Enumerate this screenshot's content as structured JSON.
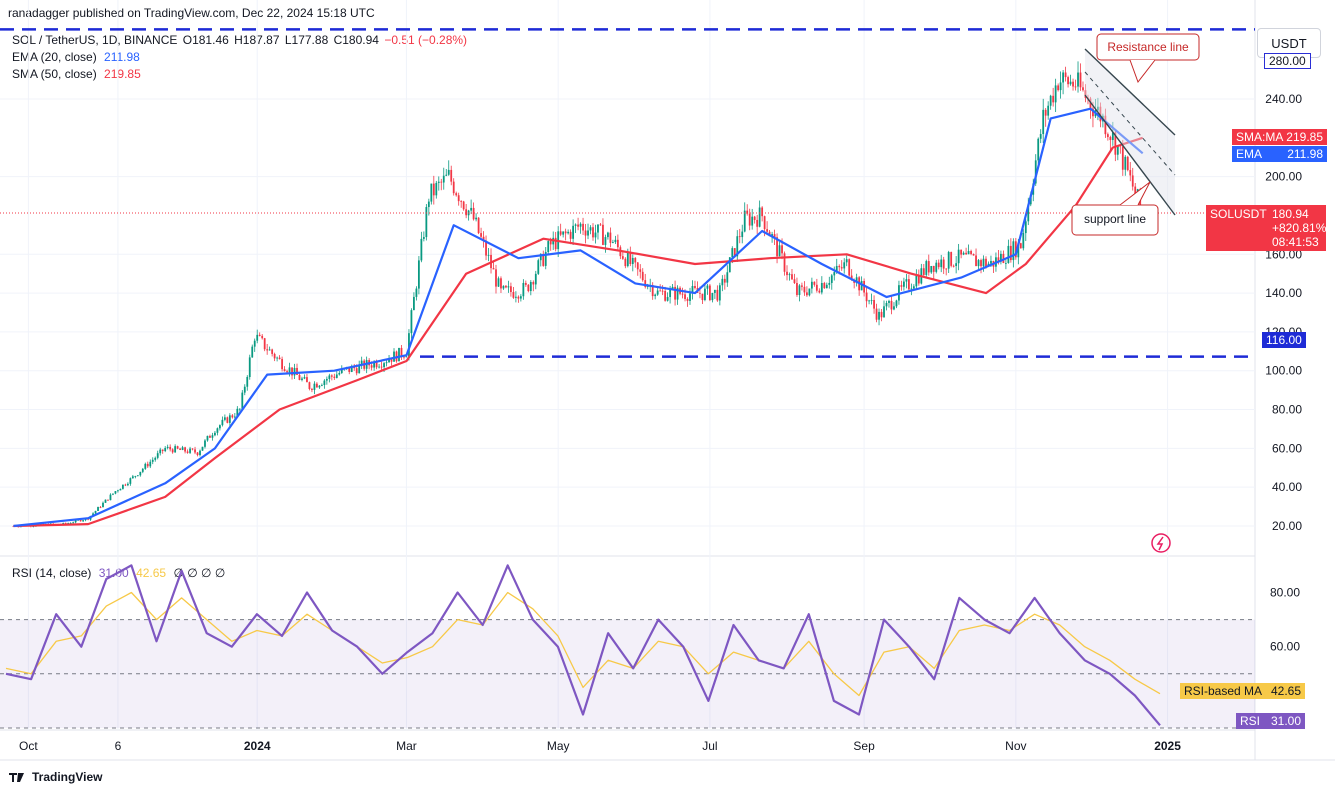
{
  "header": {
    "publisher": "ranadagger published on TradingView.com, Dec 22, 2024 15:18 UTC"
  },
  "legend": {
    "symbol": "SOL / TetherUS, 1D, BINANCE",
    "open": "O181.46",
    "high": "H187.87",
    "low": "L177.88",
    "close": "C180.94",
    "change": "−0.51 (−0.28%)",
    "ema_label": "EMA (20, close)",
    "ema_value": "211.98",
    "sma_label": "SMA (50, close)",
    "sma_value": "219.85",
    "rsi_label": "RSI (14, close)",
    "rsi_value": "31.00",
    "rsi_ma_value": "42.65",
    "rsi_placeholders": "∅ ∅ ∅ ∅"
  },
  "currency_button": "USDT",
  "tags": {
    "level_280": "280.00",
    "sma_tag": "SMA:MA",
    "sma_value": "219.85",
    "ema_tag": "EMA",
    "ema_value": "211.98",
    "sol_tag": "SOLUSDT",
    "sol_price": "180.94",
    "sol_change": "+820.81%",
    "sol_time": "08:41:53",
    "level_116": "116.00",
    "rsi_ma_tag": "RSI-based MA",
    "rsi_ma_value": "42.65",
    "rsi_tag": "RSI",
    "rsi_value": "31.00"
  },
  "annotations": {
    "resistance": "Resistance line",
    "support": "support line"
  },
  "footer": "TradingView",
  "chart_data": [
    {
      "type": "candlestick",
      "title": "SOL / TetherUS, 1D, BINANCE",
      "x_ticks": [
        "Oct",
        "6",
        "2024",
        "Mar",
        "May",
        "Jul",
        "Sep",
        "Nov",
        "2025"
      ],
      "y_ticks": [
        20,
        40,
        60,
        80,
        100,
        120,
        140,
        160,
        200,
        240
      ],
      "ylim": [
        10,
        290
      ],
      "grid": true,
      "horizontal_levels": [
        280,
        116
      ],
      "last_price": 180.94,
      "series": [
        {
          "name": "SOLUSDT",
          "kind": "close",
          "x": [
            "2023-09-25",
            "2023-10-15",
            "2023-10-25",
            "2023-11-05",
            "2023-11-12",
            "2023-11-25",
            "2023-12-08",
            "2023-12-15",
            "2023-12-25",
            "2023-12-31",
            "2024-01-10",
            "2024-01-22",
            "2024-02-05",
            "2024-02-20",
            "2024-03-01",
            "2024-03-10",
            "2024-03-18",
            "2024-03-28",
            "2024-04-08",
            "2024-04-18",
            "2024-04-28",
            "2024-05-10",
            "2024-05-22",
            "2024-06-01",
            "2024-06-10",
            "2024-06-25",
            "2024-07-05",
            "2024-07-15",
            "2024-07-22",
            "2024-08-05",
            "2024-08-15",
            "2024-08-25",
            "2024-09-07",
            "2024-09-15",
            "2024-09-28",
            "2024-10-10",
            "2024-10-22",
            "2024-11-03",
            "2024-11-12",
            "2024-11-18",
            "2024-11-25",
            "2024-12-06",
            "2024-12-12",
            "2024-12-18",
            "2024-12-22"
          ],
          "values": [
            20,
            21,
            24,
            38,
            45,
            60,
            58,
            70,
            80,
            118,
            105,
            92,
            100,
            105,
            110,
            190,
            200,
            178,
            140,
            142,
            165,
            175,
            168,
            152,
            140,
            140,
            140,
            178,
            180,
            140,
            145,
            155,
            128,
            140,
            155,
            158,
            155,
            165,
            230,
            250,
            248,
            230,
            215,
            195,
            181
          ]
        },
        {
          "name": "EMA (20, close)",
          "kind": "line",
          "x": [
            "2023-09-25",
            "2023-10-25",
            "2023-11-25",
            "2023-12-15",
            "2024-01-05",
            "2024-02-01",
            "2024-03-01",
            "2024-03-20",
            "2024-04-15",
            "2024-05-10",
            "2024-06-01",
            "2024-06-25",
            "2024-07-22",
            "2024-08-15",
            "2024-09-10",
            "2024-10-10",
            "2024-11-01",
            "2024-11-15",
            "2024-12-01",
            "2024-12-22"
          ],
          "values": [
            20,
            24,
            42,
            60,
            98,
            100,
            108,
            175,
            158,
            162,
            145,
            140,
            172,
            155,
            138,
            148,
            160,
            230,
            235,
            212
          ]
        },
        {
          "name": "SMA (50, close)",
          "kind": "line",
          "x": [
            "2023-09-25",
            "2023-10-25",
            "2023-11-25",
            "2023-12-15",
            "2024-01-10",
            "2024-02-10",
            "2024-03-01",
            "2024-03-25",
            "2024-04-25",
            "2024-05-25",
            "2024-06-25",
            "2024-07-25",
            "2024-08-25",
            "2024-09-20",
            "2024-10-20",
            "2024-11-05",
            "2024-11-25",
            "2024-12-10",
            "2024-12-22"
          ],
          "values": [
            20,
            21,
            35,
            55,
            80,
            95,
            105,
            150,
            168,
            162,
            155,
            158,
            160,
            150,
            140,
            155,
            185,
            215,
            220
          ]
        }
      ]
    },
    {
      "type": "line",
      "title": "RSI (14, close)",
      "y_ticks": [
        60,
        80
      ],
      "ylim": [
        30,
        92
      ],
      "bands": [
        30,
        70
      ],
      "series": [
        {
          "name": "RSI",
          "values": [
            50,
            48,
            72,
            60,
            85,
            90,
            62,
            88,
            65,
            60,
            72,
            64,
            80,
            66,
            60,
            50,
            58,
            65,
            80,
            68,
            90,
            70,
            60,
            35,
            65,
            52,
            70,
            60,
            40,
            68,
            55,
            52,
            72,
            40,
            35,
            70,
            60,
            48,
            78,
            70,
            65,
            78,
            65,
            55,
            50,
            42,
            31
          ]
        },
        {
          "name": "RSI-based MA",
          "values": [
            52,
            50,
            62,
            64,
            75,
            80,
            70,
            78,
            70,
            62,
            66,
            64,
            72,
            66,
            60,
            54,
            56,
            60,
            70,
            68,
            80,
            74,
            64,
            45,
            55,
            52,
            62,
            60,
            50,
            58,
            55,
            52,
            62,
            50,
            42,
            58,
            60,
            52,
            66,
            68,
            66,
            72,
            68,
            60,
            55,
            48,
            42.65
          ]
        }
      ]
    }
  ]
}
